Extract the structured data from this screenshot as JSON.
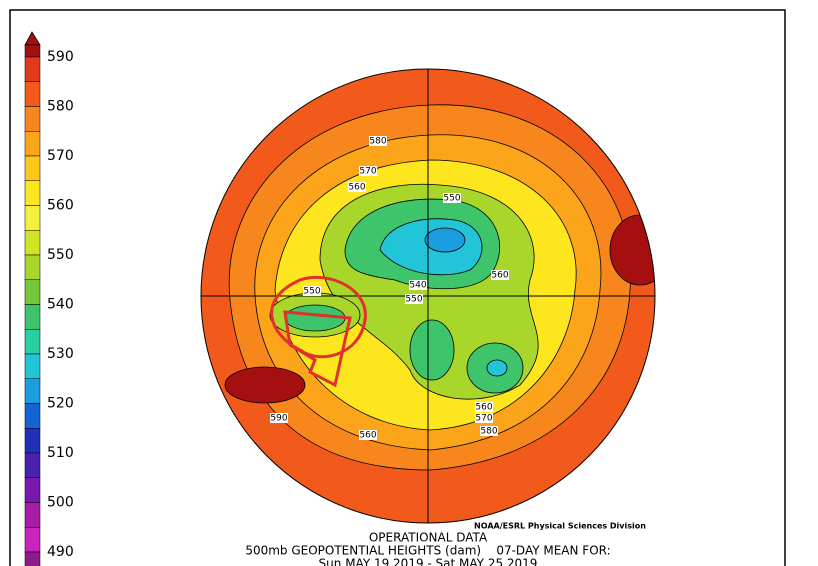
{
  "colorbar": {
    "labels": [
      590,
      580,
      570,
      560,
      550,
      540,
      530,
      520,
      510,
      500,
      490
    ],
    "colors": [
      "#a50f0f",
      "#e23a1a",
      "#f25a1c",
      "#f7861d",
      "#fca51a",
      "#fdc819",
      "#fde61e",
      "#f2f03a",
      "#d2e524",
      "#a8d62a",
      "#74c63a",
      "#3ec46a",
      "#28cfa0",
      "#22c4d8",
      "#1a9ee0",
      "#1464d2",
      "#2030b8",
      "#4a22b0",
      "#7a18b0",
      "#a81ca8",
      "#cc22c0",
      "#8c1a8a"
    ]
  },
  "contour_labels": [
    "580",
    "570",
    "560",
    "550",
    "560",
    "540",
    "550",
    "550",
    "560",
    "570",
    "580",
    "590",
    "560"
  ],
  "credit": "NOAA/ESRL Physical Sciences Division",
  "footer": {
    "line1": "OPERATIONAL DATA",
    "line2": "500mb GEOPOTENTIAL HEIGHTS (dam)    07-DAY MEAN FOR:",
    "line3": "Sun MAY 19 2019 - Sat MAY 25 2019"
  }
}
